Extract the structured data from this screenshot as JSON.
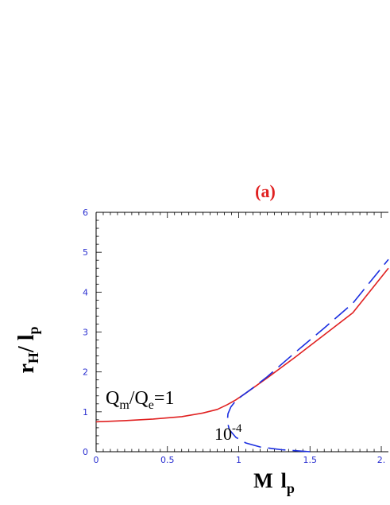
{
  "chart_data": {
    "type": "line",
    "title": "(a)",
    "xlabel_main": "M",
    "xlabel_sym": "l",
    "xlabel_sub": "p",
    "ylabel_sym1": "r",
    "ylabel_sub1": "H",
    "ylabel_sym2": "/ l",
    "ylabel_sub2": "p",
    "xlim": [
      0,
      2.05
    ],
    "ylim": [
      0,
      6
    ],
    "x_ticks": [
      0,
      0.5,
      1,
      1.5,
      2
    ],
    "x_tick_labels": [
      "0",
      "0.5",
      "1",
      "1.5",
      "2."
    ],
    "y_ticks": [
      0,
      1,
      2,
      3,
      4,
      5,
      6
    ],
    "y_tick_labels": [
      "0",
      "1",
      "2",
      "3",
      "4",
      "5",
      "6"
    ],
    "series": [
      {
        "style": "solid",
        "color": "#e02020",
        "x": [
          0,
          0.2,
          0.4,
          0.6,
          0.75,
          0.85,
          0.92,
          0.98,
          1.05,
          1.2,
          1.4,
          1.6,
          1.8,
          2.05
        ],
        "y": [
          0.75,
          0.78,
          0.82,
          0.88,
          0.97,
          1.06,
          1.18,
          1.3,
          1.47,
          1.85,
          2.38,
          2.93,
          3.48,
          4.6
        ]
      },
      {
        "style": "dashed",
        "color": "#1a2ee0",
        "x": [
          1.5,
          1.3,
          1.15,
          1.05,
          0.98,
          0.935,
          0.92,
          0.925,
          0.945,
          0.98,
          1.03,
          1.1,
          1.2,
          1.4,
          1.6,
          1.8,
          2.05
        ],
        "y": [
          0.0,
          0.05,
          0.12,
          0.22,
          0.36,
          0.55,
          0.75,
          0.95,
          1.12,
          1.28,
          1.42,
          1.6,
          1.88,
          2.5,
          3.1,
          3.72,
          4.82
        ]
      }
    ],
    "annotations": [
      {
        "text_main": "Q",
        "sub1": "m",
        "slash": "/Q",
        "sub2": "e",
        "tail": "=1"
      },
      {
        "text": "10",
        "sup": "-4"
      }
    ]
  }
}
